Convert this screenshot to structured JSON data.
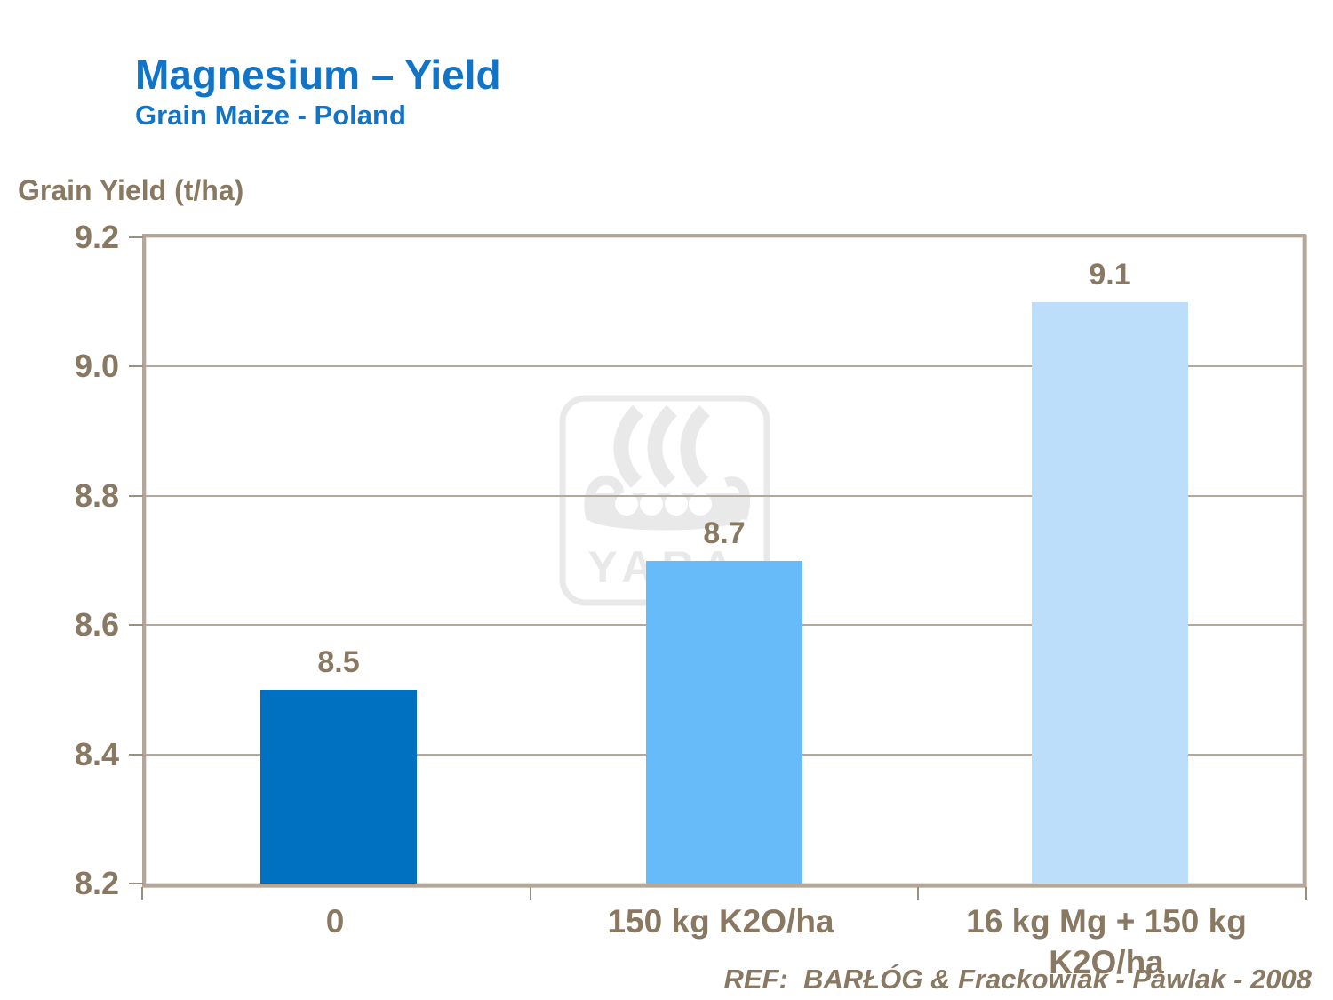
{
  "header": {
    "title": "Magnesium – Yield",
    "subtitle": "Grain Maize - Poland"
  },
  "chart_data": {
    "type": "bar",
    "title": "Magnesium – Yield",
    "subtitle": "Grain Maize - Poland",
    "ylabel": "Grain Yield (t/ha)",
    "xlabel": "",
    "categories": [
      "0",
      "150 kg K2O/ha",
      "16 kg Mg + 150 kg K2O/ha"
    ],
    "values": [
      8.5,
      8.7,
      9.1
    ],
    "data_labels": [
      "8.5",
      "8.7",
      "9.1"
    ],
    "bar_colors": [
      "#0070c0",
      "#66bbf8",
      "#bcdefa"
    ],
    "ylim": [
      8.2,
      9.2
    ],
    "ytick_values": [
      9.2,
      9.0,
      8.8,
      8.6,
      8.4,
      8.2
    ],
    "ytick_labels": [
      "9.2",
      "9.0",
      "8.8",
      "8.6",
      "8.4",
      "8.2"
    ],
    "grid": true,
    "legend_position": "none"
  },
  "watermark": {
    "name": "yara-viking-ship-logo",
    "text": "YARA"
  },
  "footer": {
    "reference": "REF:  BARŁÓG & Frackowiak - Pawlak - 2008"
  },
  "colors": {
    "title_blue": "#1174c6",
    "axis_text_brown": "#8a7962",
    "gridline_tan": "#b3a89b",
    "plot_border_tan": "#b2a79a",
    "tick_tan": "#9b8f80",
    "watermark_gray": "#e9e9e9",
    "background": "#ffffff"
  }
}
